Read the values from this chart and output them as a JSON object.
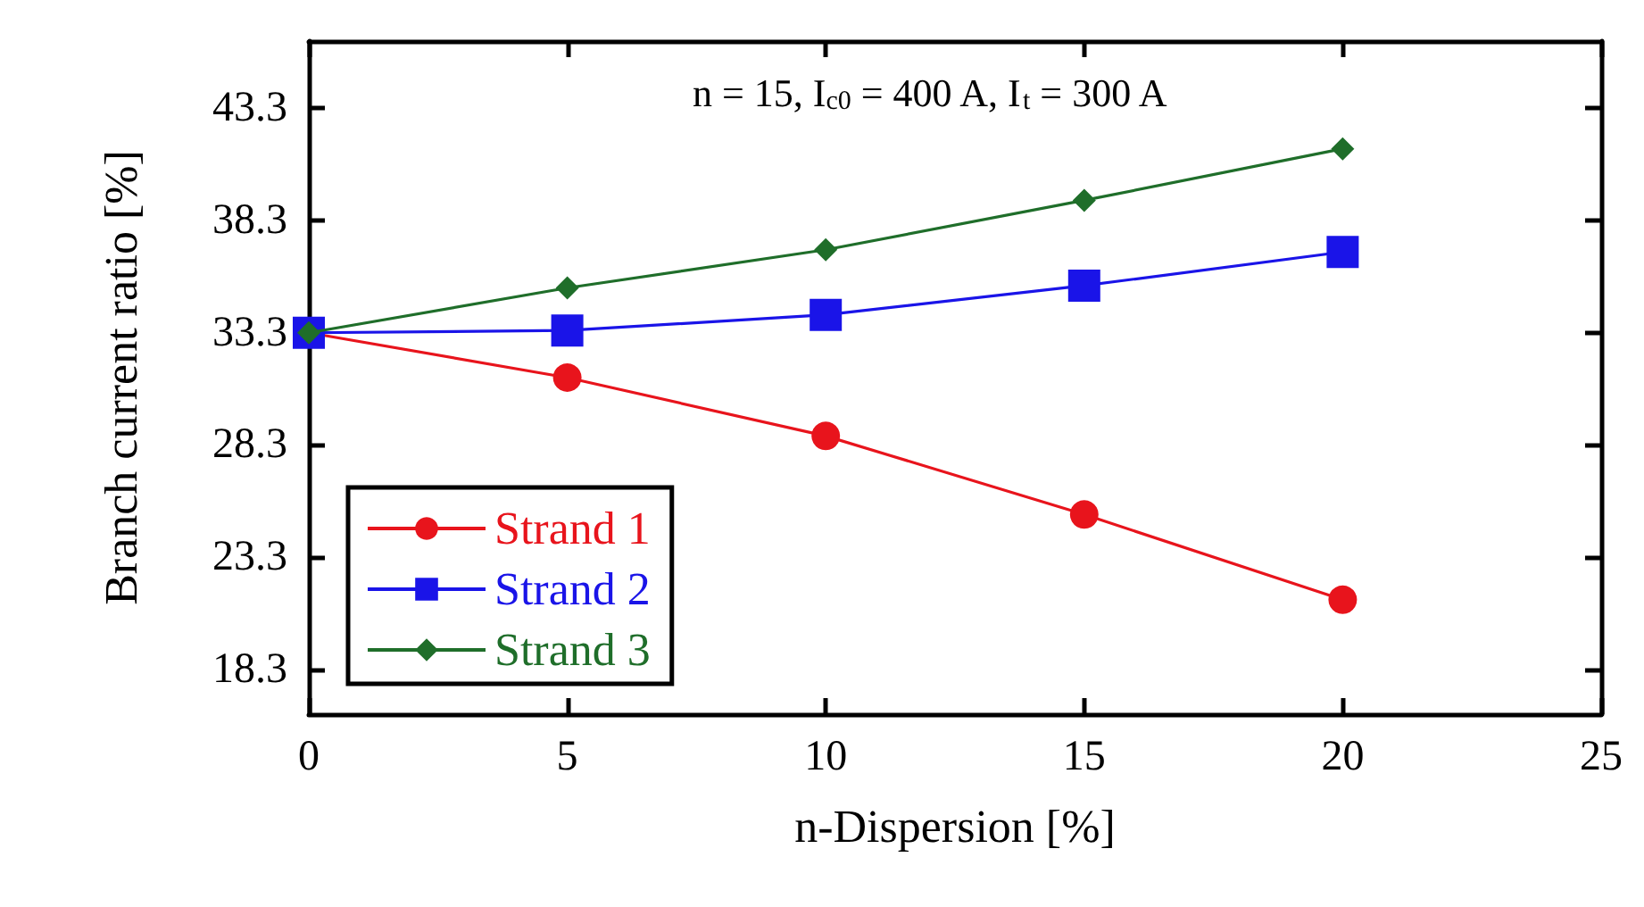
{
  "chart_data": {
    "type": "line",
    "xlabel": "n-Dispersion [%]",
    "ylabel": "Branch current ratio [%]",
    "annotations": [
      "n = 15, I$_{c0}$ = 400 A, I$_{t}$ = 300 A"
    ],
    "x": [
      0,
      5,
      10,
      15,
      20
    ],
    "series": [
      {
        "name": "Strand 1",
        "color": "#e8141c",
        "marker": "circle",
        "values": [
          33.3,
          31.3,
          28.7,
          25.2,
          21.4
        ]
      },
      {
        "name": "Strand 2",
        "color": "#1a14e8",
        "marker": "square",
        "values": [
          33.3,
          33.4,
          34.1,
          35.4,
          36.9
        ]
      },
      {
        "name": "Strand 3",
        "color": "#1f6e2a",
        "marker": "diamond",
        "values": [
          33.3,
          35.3,
          37.0,
          39.2,
          41.5
        ]
      }
    ],
    "xlim": [
      0,
      25
    ],
    "xticks": [
      0,
      5,
      10,
      15,
      20,
      25
    ],
    "ylim": [
      16.3,
      46.3
    ],
    "yticks": [
      18.3,
      23.3,
      28.3,
      33.3,
      38.3,
      43.3
    ],
    "grid": false,
    "legend": "bottom left"
  }
}
